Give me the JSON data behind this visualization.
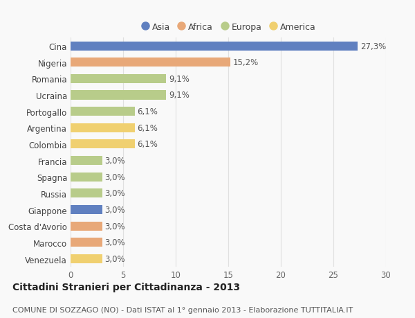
{
  "countries": [
    "Cina",
    "Nigeria",
    "Romania",
    "Ucraina",
    "Portogallo",
    "Argentina",
    "Colombia",
    "Francia",
    "Spagna",
    "Russia",
    "Giappone",
    "Costa d'Avorio",
    "Marocco",
    "Venezuela"
  ],
  "values": [
    27.3,
    15.2,
    9.1,
    9.1,
    6.1,
    6.1,
    6.1,
    3.0,
    3.0,
    3.0,
    3.0,
    3.0,
    3.0,
    3.0
  ],
  "labels": [
    "27,3%",
    "15,2%",
    "9,1%",
    "9,1%",
    "6,1%",
    "6,1%",
    "6,1%",
    "3,0%",
    "3,0%",
    "3,0%",
    "3,0%",
    "3,0%",
    "3,0%",
    "3,0%"
  ],
  "continents": [
    "Asia",
    "Africa",
    "Europa",
    "Europa",
    "Europa",
    "America",
    "America",
    "Europa",
    "Europa",
    "Europa",
    "Asia",
    "Africa",
    "Africa",
    "America"
  ],
  "continent_colors": {
    "Asia": "#6080c0",
    "Africa": "#e8a878",
    "Europa": "#b8cc8a",
    "America": "#f0d070"
  },
  "legend_order": [
    "Asia",
    "Africa",
    "Europa",
    "America"
  ],
  "xlim": [
    0,
    30
  ],
  "xticks": [
    0,
    5,
    10,
    15,
    20,
    25,
    30
  ],
  "title": "Cittadini Stranieri per Cittadinanza - 2013",
  "subtitle": "COMUNE DI SOZZAGO (NO) - Dati ISTAT al 1° gennaio 2013 - Elaborazione TUTTITALIA.IT",
  "background_color": "#f9f9f9",
  "grid_color": "#e0e0e0",
  "title_fontsize": 10,
  "subtitle_fontsize": 8,
  "label_fontsize": 8.5,
  "tick_fontsize": 8.5,
  "legend_fontsize": 9
}
